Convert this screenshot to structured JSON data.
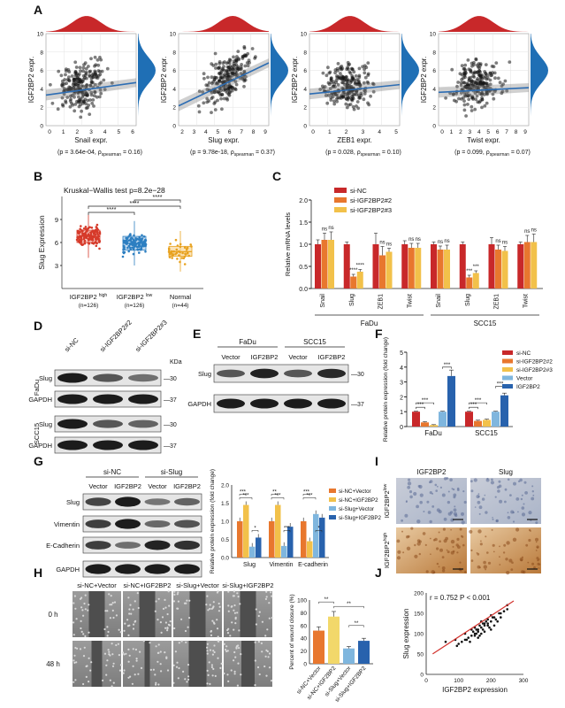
{
  "panels": {
    "A": {
      "letter": "A",
      "ylabel": "IGF2BP2 expr.",
      "plots": [
        {
          "xlabel": "Snail expr.",
          "xticks": [
            "0",
            "1",
            "2",
            "3",
            "4",
            "5",
            "6"
          ],
          "stat_p": "(p = 3.64e-04, ",
          "stat_rho": "ρ",
          "stat_sub": "spearman",
          "stat_val": " = 0.16)"
        },
        {
          "xlabel": "Slug expr.",
          "xticks": [
            "2",
            "3",
            "4",
            "5",
            "6",
            "7",
            "8",
            "9"
          ],
          "stat_p": "(p = 9.78e-18, ",
          "stat_rho": "ρ",
          "stat_sub": "spearman",
          "stat_val": " = 0.37)"
        },
        {
          "xlabel": "ZEB1 expr.",
          "xticks": [
            "0",
            "1",
            "2",
            "3",
            "4",
            "5"
          ],
          "stat_p": "(p = 0.028, ",
          "stat_rho": "ρ",
          "stat_sub": "spearman",
          "stat_val": " = 0.10)"
        },
        {
          "xlabel": "Twist expr.",
          "xticks": [
            "0",
            "1",
            "2",
            "3",
            "4",
            "5",
            "6",
            "7",
            "8",
            "9"
          ],
          "stat_p": "(p = 0.099, ",
          "stat_rho": "ρ",
          "stat_sub": "spearman",
          "stat_val": " = 0.07)"
        }
      ],
      "yticks": [
        "0",
        "2",
        "4",
        "6",
        "8",
        "10"
      ]
    },
    "B": {
      "letter": "B",
      "title": "Kruskal−Wallis test p=8.2e−28",
      "ylabel": "Slug Expression",
      "yticks": [
        "9",
        "6",
        "3"
      ],
      "groups": [
        {
          "label": "IGF2BP2 ",
          "sup": "high",
          "n": "(n=126)"
        },
        {
          "label": "IGF2BP2 ",
          "sup": "low",
          "n": "(n=126)"
        },
        {
          "label": "Normal",
          "sup": "",
          "n": "(n=44)"
        }
      ],
      "sig": [
        "****",
        "****",
        "****"
      ]
    },
    "C": {
      "letter": "C",
      "ylabel": "Relative mRNA levels",
      "yticks": [
        "0.0",
        "0.5",
        "1.0",
        "1.5",
        "2.0"
      ],
      "legend": [
        "si-NC",
        "si-IGF2BP2#2",
        "si-IGF2BP2#3"
      ],
      "genes": [
        "Snail",
        "Slug",
        "ZEB1",
        "Twist",
        "Snail",
        "Slug",
        "ZEB1",
        "Twist"
      ],
      "cells": [
        "FaDu",
        "SCC15"
      ],
      "sig": [
        "ns",
        "ns",
        "****",
        "****",
        "ns",
        "ns",
        "ns",
        "ns",
        "ns",
        "ns",
        "***",
        "***",
        "ns",
        "ns",
        "ns",
        "ns"
      ]
    },
    "D": {
      "letter": "D",
      "lanes": [
        "si-NC",
        "si-IGF2BP2#2",
        "si-IGF2BP2#3"
      ],
      "kda": "KDa",
      "rows": [
        "Slug",
        "GAPDH",
        "Slug",
        "GAPDH"
      ],
      "markers": [
        "—30",
        "—37",
        "—30",
        "—37"
      ],
      "cells": [
        "FaDu",
        "SCC15"
      ]
    },
    "E": {
      "letter": "E",
      "cells": [
        "FaDu",
        "SCC15"
      ],
      "lanes": [
        "Vector",
        "IGF2BP2",
        "Vector",
        "IGF2BP2"
      ],
      "rows": [
        "Slug",
        "GAPDH"
      ],
      "markers": [
        "—30",
        "—37"
      ]
    },
    "F": {
      "letter": "F",
      "ylabel": "Relative protein expression (fold change)",
      "yticks": [
        "0",
        "1",
        "2",
        "3",
        "4",
        "5"
      ],
      "legend": [
        "si-NC",
        "si-IGF2BP2#2",
        "si-IGF2BP2#3",
        "Vector",
        "IGF2BP2"
      ],
      "cells": [
        "FaDu",
        "SCC15"
      ],
      "sig": [
        "***",
        "***",
        "***",
        "***",
        "***",
        "***"
      ]
    },
    "G": {
      "letter": "G",
      "groups": [
        "si-NC",
        "si-Slug"
      ],
      "lanes": [
        "Vector",
        "IGF2BP2",
        "Vector",
        "IGF2BP2"
      ],
      "rows": [
        "Slug",
        "Vimentin",
        "E-Cadherin",
        "GAPDH"
      ],
      "chart_ylabel": "Relative protein expression (fold change)",
      "chart_yticks": [
        "0.0",
        "0.5",
        "1.0",
        "1.5",
        "2.0"
      ],
      "chart_x": [
        "Slug",
        "Vimentin",
        "E-cadherin"
      ],
      "legend": [
        "si-NC+Vector",
        "si-NC+IGF2BP2",
        "si-Slug+Vector",
        "si-Slug+IGF2BP2"
      ],
      "sig": [
        "***",
        "***",
        "*",
        "**",
        "***",
        "***",
        "***",
        "***",
        "*"
      ]
    },
    "H": {
      "letter": "H",
      "cols": [
        "si-NC+Vector",
        "si-NC+IGF2BP2",
        "si-Slug+Vector",
        "si-Slug+IGF2BP2"
      ],
      "rows": [
        "0 h",
        "48 h"
      ],
      "chart_ylabel": "Percent of wound closure (%)",
      "chart_yticks": [
        "0",
        "20",
        "40",
        "60",
        "80",
        "100"
      ],
      "sig": [
        "**",
        "**",
        "**"
      ]
    },
    "I": {
      "letter": "I",
      "cols": [
        "IGF2BP2",
        "Slug"
      ],
      "rows": [
        {
          "base": "IGF2BP2",
          "sup": "low"
        },
        {
          "base": "IGF2BP2",
          "sup": "high"
        }
      ]
    },
    "J": {
      "letter": "J",
      "stat": "r = 0.752    P < 0.001",
      "xlabel": "IGF2BP2 expression",
      "ylabel": "Slug expression",
      "xticks": [
        "0",
        "100",
        "200",
        "300"
      ],
      "yticks": [
        "0",
        "50",
        "100",
        "150",
        "200"
      ]
    }
  },
  "chart_data": [
    {
      "type": "bar",
      "title": "",
      "ylabel": "Relative mRNA levels",
      "categories": [
        "Snail",
        "Slug",
        "ZEB1",
        "Twist",
        "Snail",
        "Slug",
        "ZEB1",
        "Twist"
      ],
      "series": [
        {
          "name": "si-NC",
          "values": [
            1.0,
            1.0,
            1.0,
            1.0,
            1.0,
            1.0,
            1.0,
            1.0
          ],
          "errors": [
            0.1,
            0.05,
            0.25,
            0.08,
            0.05,
            0.05,
            0.15,
            0.05
          ]
        },
        {
          "name": "si-IGF2BP2#2",
          "values": [
            1.1,
            0.27,
            0.75,
            0.92,
            0.88,
            0.25,
            0.88,
            1.05
          ],
          "errors": [
            0.15,
            0.05,
            0.2,
            0.1,
            0.08,
            0.05,
            0.1,
            0.15
          ]
        },
        {
          "name": "si-IGF2BP2#3",
          "values": [
            1.1,
            0.38,
            0.83,
            0.92,
            0.88,
            0.35,
            0.85,
            1.05
          ],
          "errors": [
            0.18,
            0.05,
            0.08,
            0.1,
            0.1,
            0.05,
            0.1,
            0.18
          ]
        }
      ],
      "ylim": [
        0,
        2.0
      ]
    },
    {
      "type": "bar",
      "title": "",
      "ylabel": "Relative protein expression (fold change)",
      "categories": [
        "FaDu",
        "SCC15"
      ],
      "series": [
        {
          "name": "si-NC",
          "values": [
            1.0,
            1.0
          ],
          "errors": [
            0.03,
            0.03
          ]
        },
        {
          "name": "si-IGF2BP2#2",
          "values": [
            0.28,
            0.38
          ],
          "errors": [
            0.05,
            0.05
          ]
        },
        {
          "name": "si-IGF2BP2#3",
          "values": [
            0.1,
            0.45
          ],
          "errors": [
            0.03,
            0.05
          ]
        },
        {
          "name": "Vector",
          "values": [
            1.0,
            1.0
          ],
          "errors": [
            0.03,
            0.03
          ]
        },
        {
          "name": "IGF2BP2",
          "values": [
            3.4,
            2.1
          ],
          "errors": [
            0.4,
            0.15
          ]
        }
      ],
      "ylim": [
        0,
        5
      ]
    },
    {
      "type": "bar",
      "title": "",
      "ylabel": "Relative protein expression (fold change)",
      "categories": [
        "Slug",
        "Vimentin",
        "E-cadherin"
      ],
      "series": [
        {
          "name": "si-NC+Vector",
          "values": [
            1.0,
            1.0,
            1.0
          ]
        },
        {
          "name": "si-NC+IGF2BP2",
          "values": [
            1.45,
            1.45,
            0.45
          ]
        },
        {
          "name": "si-Slug+Vector",
          "values": [
            0.3,
            0.32,
            1.2
          ]
        },
        {
          "name": "si-Slug+IGF2BP2",
          "values": [
            0.55,
            0.85,
            1.1
          ]
        }
      ],
      "ylim": [
        0,
        2.0
      ]
    },
    {
      "type": "bar",
      "title": "",
      "ylabel": "Percent of wound closure (%)",
      "categories": [
        "si-NC+Vector",
        "si-NC+IGF2BP2",
        "si-Slug+Vector",
        "si-Slug+IGF2BP2"
      ],
      "values": [
        52,
        74,
        24,
        36
      ],
      "errors": [
        6,
        8,
        3,
        4
      ],
      "ylim": [
        0,
        100
      ]
    },
    {
      "type": "scatter",
      "title": "",
      "xlabel": "IGF2BP2 expression",
      "ylabel": "Slug expression",
      "xlim": [
        0,
        300
      ],
      "ylim": [
        0,
        200
      ],
      "x": [
        130,
        140,
        150,
        160,
        170,
        180,
        190,
        200,
        210,
        120,
        145,
        155,
        165,
        175,
        185,
        195,
        205,
        215,
        225,
        135,
        150,
        160,
        170,
        180,
        190,
        200,
        95,
        110,
        125,
        230,
        240,
        250,
        100,
        140,
        170,
        210,
        230,
        160,
        180,
        200,
        150,
        120,
        90,
        60,
        250,
        220,
        190,
        175,
        165,
        155
      ],
      "y": [
        90,
        95,
        100,
        110,
        115,
        120,
        125,
        130,
        140,
        85,
        105,
        100,
        120,
        110,
        130,
        115,
        140,
        135,
        150,
        80,
        95,
        105,
        100,
        125,
        120,
        145,
        70,
        80,
        85,
        150,
        155,
        160,
        75,
        110,
        130,
        120,
        140,
        90,
        105,
        110,
        115,
        100,
        85,
        80,
        170,
        130,
        135,
        125,
        95,
        110
      ],
      "fit_line": {
        "slope": 0.52,
        "intercept": 40
      }
    }
  ]
}
